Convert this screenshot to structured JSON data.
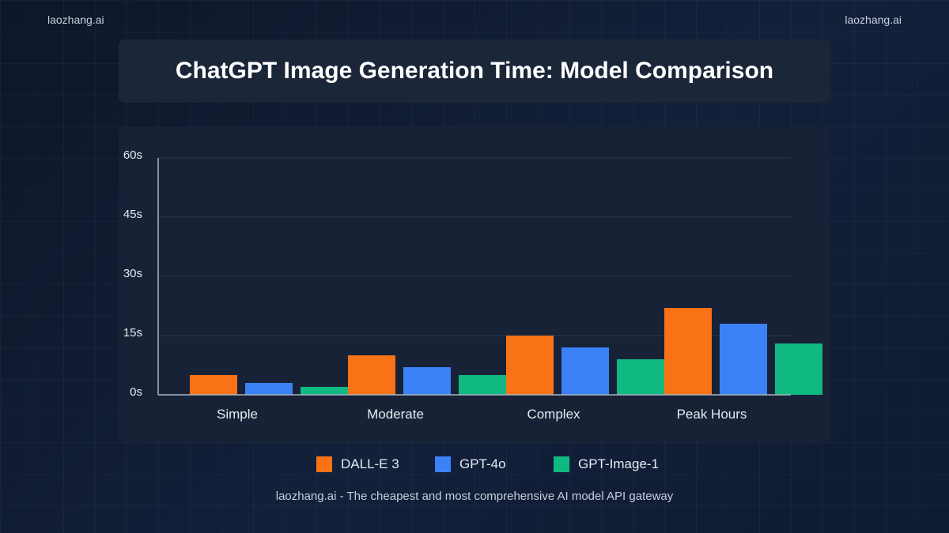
{
  "brand": {
    "left": "laozhang.ai",
    "right": "laozhang.ai"
  },
  "footer": "laozhang.ai - The cheapest and most comprehensive AI model API gateway",
  "chart_data": {
    "type": "bar",
    "title": "ChatGPT Image Generation Time: Model Comparison",
    "xlabel": "",
    "ylabel": "",
    "categories": [
      "Simple",
      "Moderate",
      "Complex",
      "Peak Hours"
    ],
    "series": [
      {
        "name": "DALL-E 3",
        "color": "#f97316",
        "values": [
          5,
          10,
          15,
          22
        ]
      },
      {
        "name": "GPT-4o",
        "color": "#3b82f6",
        "values": [
          3,
          7,
          12,
          18
        ]
      },
      {
        "name": "GPT-Image-1",
        "color": "#10b981",
        "values": [
          2,
          5,
          9,
          13
        ]
      }
    ],
    "ylim": [
      0,
      60
    ],
    "yticks": [
      0,
      15,
      30,
      45,
      60
    ],
    "ytick_labels": [
      "0s",
      "15s",
      "30s",
      "45s",
      "60s"
    ],
    "grid": true,
    "legend_position": "bottom-center"
  }
}
